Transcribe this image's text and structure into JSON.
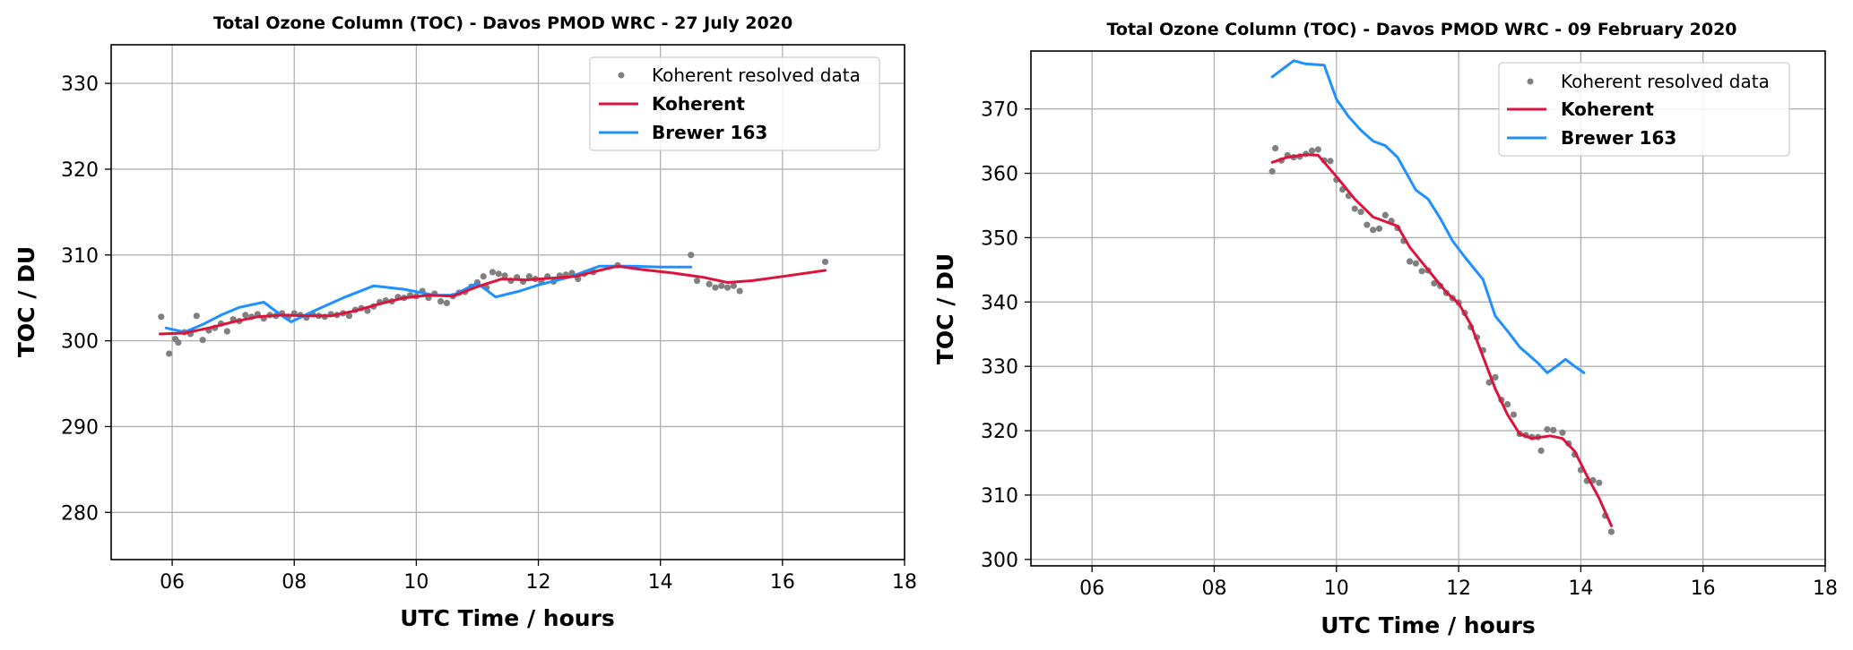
{
  "chart_data": [
    {
      "type": "line",
      "title": "Total Ozone Column (TOC) - Davos PMOD WRC - 27 July 2020",
      "xlabel": "UTC Time / hours",
      "ylabel": "TOC / DU",
      "xlim": [
        5,
        18
      ],
      "ylim": [
        274.5,
        334.5
      ],
      "xticks": [
        6,
        8,
        10,
        12,
        14,
        16,
        18
      ],
      "xtick_labels": [
        "06",
        "08",
        "10",
        "12",
        "14",
        "16",
        "18"
      ],
      "yticks": [
        280,
        290,
        300,
        310,
        320,
        330
      ],
      "ytick_labels": [
        "280",
        "290",
        "300",
        "310",
        "320",
        "330"
      ],
      "grid": true,
      "legend_position": "top-right",
      "series": [
        {
          "name": "Koherent resolved data",
          "style": "scatter",
          "color": "#808080",
          "points": [
            [
              5.82,
              302.8
            ],
            [
              5.95,
              298.5
            ],
            [
              6.05,
              300.2
            ],
            [
              6.1,
              299.8
            ],
            [
              6.2,
              301.0
            ],
            [
              6.3,
              300.8
            ],
            [
              6.4,
              302.9
            ],
            [
              6.5,
              300.1
            ],
            [
              6.6,
              301.2
            ],
            [
              6.7,
              301.5
            ],
            [
              6.8,
              302.0
            ],
            [
              6.9,
              301.1
            ],
            [
              7.0,
              302.5
            ],
            [
              7.1,
              302.3
            ],
            [
              7.2,
              303.0
            ],
            [
              7.3,
              302.8
            ],
            [
              7.4,
              303.1
            ],
            [
              7.5,
              302.6
            ],
            [
              7.6,
              303.0
            ],
            [
              7.7,
              302.9
            ],
            [
              7.8,
              303.2
            ],
            [
              7.9,
              302.8
            ],
            [
              8.0,
              303.2
            ],
            [
              8.1,
              303.0
            ],
            [
              8.2,
              302.7
            ],
            [
              8.3,
              303.1
            ],
            [
              8.4,
              302.9
            ],
            [
              8.5,
              302.8
            ],
            [
              8.6,
              303.1
            ],
            [
              8.7,
              303.0
            ],
            [
              8.8,
              303.2
            ],
            [
              8.9,
              302.9
            ],
            [
              9.0,
              303.6
            ],
            [
              9.1,
              303.8
            ],
            [
              9.2,
              303.5
            ],
            [
              9.3,
              304.0
            ],
            [
              9.4,
              304.5
            ],
            [
              9.5,
              304.7
            ],
            [
              9.6,
              304.6
            ],
            [
              9.7,
              305.1
            ],
            [
              9.8,
              305.0
            ],
            [
              9.9,
              305.3
            ],
            [
              10.0,
              305.2
            ],
            [
              10.1,
              305.8
            ],
            [
              10.2,
              305.0
            ],
            [
              10.3,
              305.5
            ],
            [
              10.4,
              304.6
            ],
            [
              10.5,
              304.4
            ],
            [
              10.6,
              305.2
            ],
            [
              10.7,
              305.6
            ],
            [
              10.8,
              305.7
            ],
            [
              10.9,
              306.3
            ],
            [
              11.0,
              306.8
            ],
            [
              11.1,
              307.5
            ],
            [
              11.15,
              306.2
            ],
            [
              11.25,
              308.0
            ],
            [
              11.35,
              307.8
            ],
            [
              11.45,
              307.6
            ],
            [
              11.55,
              307.0
            ],
            [
              11.65,
              307.4
            ],
            [
              11.75,
              306.9
            ],
            [
              11.85,
              307.5
            ],
            [
              11.95,
              307.2
            ],
            [
              12.05,
              307.0
            ],
            [
              12.15,
              307.5
            ],
            [
              12.25,
              306.9
            ],
            [
              12.35,
              307.6
            ],
            [
              12.45,
              307.7
            ],
            [
              12.55,
              307.9
            ],
            [
              12.65,
              307.2
            ],
            [
              12.75,
              307.8
            ],
            [
              12.9,
              308.0
            ],
            [
              13.3,
              308.8
            ],
            [
              14.5,
              310.0
            ],
            [
              14.6,
              307.0
            ],
            [
              14.8,
              306.6
            ],
            [
              14.9,
              306.2
            ],
            [
              15.0,
              306.4
            ],
            [
              15.1,
              306.2
            ],
            [
              15.2,
              306.4
            ],
            [
              15.3,
              305.8
            ],
            [
              16.7,
              309.2
            ]
          ]
        },
        {
          "name": "Koherent",
          "style": "line",
          "color": "#dc143c",
          "points": [
            [
              5.8,
              300.8
            ],
            [
              6.2,
              300.9
            ],
            [
              6.6,
              301.5
            ],
            [
              7.0,
              302.2
            ],
            [
              7.4,
              302.8
            ],
            [
              7.8,
              303.0
            ],
            [
              8.2,
              302.9
            ],
            [
              8.6,
              302.9
            ],
            [
              9.0,
              303.5
            ],
            [
              9.4,
              304.3
            ],
            [
              9.8,
              305.0
            ],
            [
              10.2,
              305.3
            ],
            [
              10.6,
              305.2
            ],
            [
              11.0,
              306.3
            ],
            [
              11.4,
              307.2
            ],
            [
              11.8,
              307.1
            ],
            [
              12.2,
              307.3
            ],
            [
              12.6,
              307.5
            ],
            [
              13.0,
              308.2
            ],
            [
              13.3,
              308.7
            ],
            [
              13.7,
              308.3
            ],
            [
              14.2,
              307.9
            ],
            [
              14.7,
              307.4
            ],
            [
              15.1,
              306.8
            ],
            [
              15.5,
              307.0
            ],
            [
              16.0,
              307.5
            ],
            [
              16.7,
              308.2
            ]
          ]
        },
        {
          "name": "Brewer 163",
          "style": "line",
          "color": "#1e90ff",
          "points": [
            [
              5.9,
              301.5
            ],
            [
              6.2,
              301.0
            ],
            [
              6.5,
              301.9
            ],
            [
              6.8,
              303.0
            ],
            [
              7.1,
              303.9
            ],
            [
              7.5,
              304.5
            ],
            [
              7.8,
              302.9
            ],
            [
              7.95,
              302.2
            ],
            [
              8.3,
              303.4
            ],
            [
              8.8,
              305.0
            ],
            [
              9.3,
              306.4
            ],
            [
              9.8,
              306.0
            ],
            [
              10.3,
              305.3
            ],
            [
              10.6,
              305.3
            ],
            [
              11.0,
              306.7
            ],
            [
              11.3,
              305.1
            ],
            [
              11.7,
              305.8
            ],
            [
              12.0,
              306.5
            ],
            [
              12.5,
              307.4
            ],
            [
              13.0,
              308.7
            ],
            [
              13.5,
              308.7
            ],
            [
              14.0,
              308.6
            ],
            [
              14.5,
              308.6
            ]
          ]
        }
      ]
    },
    {
      "type": "line",
      "title": "Total Ozone Column (TOC) - Davos PMOD WRC - 09 February 2020",
      "xlabel": "UTC Time / hours",
      "ylabel": "TOC / DU",
      "xlim": [
        5,
        18
      ],
      "ylim": [
        299,
        379
      ],
      "xticks": [
        6,
        8,
        10,
        12,
        14,
        16,
        18
      ],
      "xtick_labels": [
        "06",
        "08",
        "10",
        "12",
        "14",
        "16",
        "18"
      ],
      "yticks": [
        300,
        310,
        320,
        330,
        340,
        350,
        360,
        370
      ],
      "ytick_labels": [
        "300",
        "310",
        "320",
        "330",
        "340",
        "350",
        "360",
        "370"
      ],
      "grid": true,
      "legend_position": "top-right",
      "series": [
        {
          "name": "Koherent resolved data",
          "style": "scatter",
          "color": "#808080",
          "points": [
            [
              8.95,
              360.3
            ],
            [
              9.0,
              363.9
            ],
            [
              9.1,
              362.0
            ],
            [
              9.2,
              362.8
            ],
            [
              9.3,
              362.5
            ],
            [
              9.4,
              362.6
            ],
            [
              9.5,
              363.0
            ],
            [
              9.6,
              363.5
            ],
            [
              9.7,
              363.7
            ],
            [
              9.8,
              362.0
            ],
            [
              9.9,
              361.9
            ],
            [
              10.0,
              359.0
            ],
            [
              10.1,
              357.5
            ],
            [
              10.2,
              356.5
            ],
            [
              10.3,
              354.5
            ],
            [
              10.4,
              354.0
            ],
            [
              10.5,
              352.0
            ],
            [
              10.6,
              351.2
            ],
            [
              10.7,
              351.4
            ],
            [
              10.8,
              353.5
            ],
            [
              10.9,
              352.6
            ],
            [
              11.0,
              351.5
            ],
            [
              11.1,
              349.5
            ],
            [
              11.2,
              346.3
            ],
            [
              11.3,
              346.0
            ],
            [
              11.4,
              344.8
            ],
            [
              11.5,
              344.9
            ],
            [
              11.6,
              342.9
            ],
            [
              11.7,
              342.5
            ],
            [
              11.8,
              341.4
            ],
            [
              11.9,
              340.6
            ],
            [
              12.0,
              339.9
            ],
            [
              12.1,
              338.3
            ],
            [
              12.2,
              336.1
            ],
            [
              12.3,
              334.5
            ],
            [
              12.4,
              332.5
            ],
            [
              12.5,
              327.5
            ],
            [
              12.6,
              328.3
            ],
            [
              12.7,
              324.8
            ],
            [
              12.8,
              324.1
            ],
            [
              12.9,
              322.5
            ],
            [
              13.0,
              319.5
            ],
            [
              13.1,
              319.3
            ],
            [
              13.2,
              319.0
            ],
            [
              13.3,
              319.0
            ],
            [
              13.35,
              316.9
            ],
            [
              13.45,
              320.2
            ],
            [
              13.55,
              320.1
            ],
            [
              13.7,
              319.7
            ],
            [
              13.8,
              318.0
            ],
            [
              13.9,
              316.3
            ],
            [
              14.0,
              313.9
            ],
            [
              14.1,
              312.2
            ],
            [
              14.2,
              312.3
            ],
            [
              14.3,
              311.9
            ],
            [
              14.4,
              306.8
            ],
            [
              14.5,
              304.3
            ]
          ]
        },
        {
          "name": "Koherent",
          "style": "line",
          "color": "#dc143c",
          "points": [
            [
              8.95,
              361.7
            ],
            [
              9.2,
              362.5
            ],
            [
              9.5,
              362.9
            ],
            [
              9.7,
              362.8
            ],
            [
              10.0,
              359.5
            ],
            [
              10.3,
              356.0
            ],
            [
              10.6,
              353.2
            ],
            [
              11.0,
              351.8
            ],
            [
              11.2,
              348.5
            ],
            [
              11.5,
              345.0
            ],
            [
              11.8,
              341.5
            ],
            [
              12.0,
              339.8
            ],
            [
              12.2,
              336.5
            ],
            [
              12.4,
              331.5
            ],
            [
              12.6,
              326.5
            ],
            [
              12.8,
              322.5
            ],
            [
              13.0,
              319.5
            ],
            [
              13.2,
              318.8
            ],
            [
              13.5,
              319.2
            ],
            [
              13.7,
              318.8
            ],
            [
              13.9,
              316.8
            ],
            [
              14.1,
              313.0
            ],
            [
              14.3,
              309.5
            ],
            [
              14.5,
              305.2
            ]
          ]
        },
        {
          "name": "Brewer 163",
          "style": "line",
          "color": "#1e90ff",
          "points": [
            [
              8.95,
              375.0
            ],
            [
              9.3,
              377.5
            ],
            [
              9.5,
              377.0
            ],
            [
              9.8,
              376.8
            ],
            [
              10.0,
              371.5
            ],
            [
              10.2,
              368.8
            ],
            [
              10.4,
              366.7
            ],
            [
              10.6,
              365.0
            ],
            [
              10.8,
              364.3
            ],
            [
              11.0,
              362.5
            ],
            [
              11.3,
              357.4
            ],
            [
              11.5,
              356.0
            ],
            [
              11.7,
              353.0
            ],
            [
              11.9,
              349.5
            ],
            [
              12.1,
              347.0
            ],
            [
              12.4,
              343.5
            ],
            [
              12.6,
              337.8
            ],
            [
              12.8,
              335.5
            ],
            [
              13.0,
              333.0
            ],
            [
              13.3,
              330.5
            ],
            [
              13.45,
              329.0
            ],
            [
              13.6,
              330.0
            ],
            [
              13.75,
              331.1
            ],
            [
              13.9,
              330.0
            ],
            [
              14.05,
              329.0
            ]
          ]
        }
      ]
    }
  ]
}
